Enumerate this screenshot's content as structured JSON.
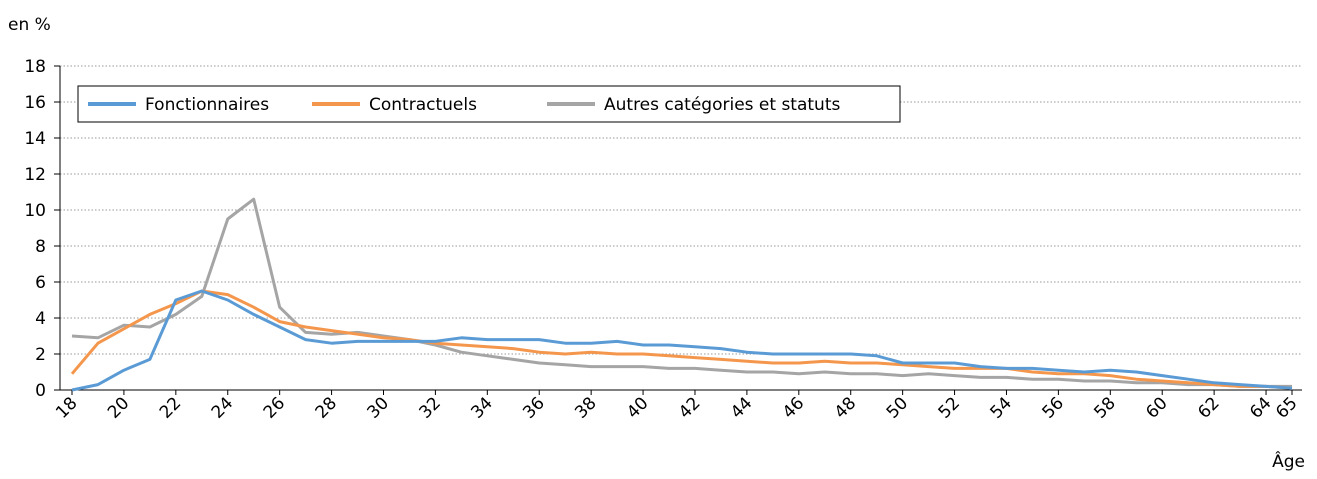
{
  "chart_data": {
    "type": "line",
    "ylabel": "en %",
    "xlabel": "Âge",
    "x": [
      18,
      19,
      20,
      21,
      22,
      23,
      24,
      25,
      26,
      27,
      28,
      29,
      30,
      31,
      32,
      33,
      34,
      35,
      36,
      37,
      38,
      39,
      40,
      41,
      42,
      43,
      44,
      45,
      46,
      47,
      48,
      49,
      50,
      51,
      52,
      53,
      54,
      55,
      56,
      57,
      58,
      59,
      60,
      61,
      62,
      63,
      64,
      65
    ],
    "xlim": [
      18,
      65
    ],
    "xticks": [
      18,
      20,
      22,
      24,
      26,
      28,
      30,
      32,
      34,
      36,
      38,
      40,
      42,
      44,
      46,
      48,
      50,
      52,
      54,
      56,
      58,
      60,
      62,
      64,
      65
    ],
    "ylim": [
      0,
      18
    ],
    "yticks": [
      0,
      2,
      4,
      6,
      8,
      10,
      12,
      14,
      16,
      18
    ],
    "grid": true,
    "legend": "top-left",
    "series": [
      {
        "name": "Fonctionnaires",
        "color": "#5b9bd5",
        "values": [
          0.0,
          0.3,
          1.1,
          1.7,
          5.0,
          5.5,
          5.0,
          4.2,
          3.5,
          2.8,
          2.6,
          2.7,
          2.7,
          2.7,
          2.7,
          2.9,
          2.8,
          2.8,
          2.8,
          2.6,
          2.6,
          2.7,
          2.5,
          2.5,
          2.4,
          2.3,
          2.1,
          2.0,
          2.0,
          2.0,
          2.0,
          1.9,
          1.5,
          1.5,
          1.5,
          1.3,
          1.2,
          1.2,
          1.1,
          1.0,
          1.1,
          1.0,
          0.8,
          0.6,
          0.4,
          0.3,
          0.2,
          0.1
        ]
      },
      {
        "name": "Contractuels",
        "color": "#f4974d",
        "values": [
          0.9,
          2.6,
          3.4,
          4.2,
          4.8,
          5.5,
          5.3,
          4.6,
          3.8,
          3.5,
          3.3,
          3.1,
          2.9,
          2.8,
          2.6,
          2.5,
          2.4,
          2.3,
          2.1,
          2.0,
          2.1,
          2.0,
          2.0,
          1.9,
          1.8,
          1.7,
          1.6,
          1.5,
          1.5,
          1.6,
          1.5,
          1.5,
          1.4,
          1.3,
          1.2,
          1.2,
          1.2,
          1.0,
          0.9,
          0.9,
          0.8,
          0.6,
          0.5,
          0.4,
          0.3,
          0.2,
          0.2,
          0.1
        ]
      },
      {
        "name": "Autres catégories et statuts",
        "color": "#a5a5a5",
        "values": [
          3.0,
          2.9,
          3.6,
          3.5,
          4.2,
          5.2,
          9.5,
          10.6,
          4.6,
          3.2,
          3.1,
          3.2,
          3.0,
          2.8,
          2.5,
          2.1,
          1.9,
          1.7,
          1.5,
          1.4,
          1.3,
          1.3,
          1.3,
          1.2,
          1.2,
          1.1,
          1.0,
          1.0,
          0.9,
          1.0,
          0.9,
          0.9,
          0.8,
          0.9,
          0.8,
          0.7,
          0.7,
          0.6,
          0.6,
          0.5,
          0.5,
          0.4,
          0.4,
          0.3,
          0.3,
          0.2,
          0.2,
          0.2
        ]
      }
    ]
  }
}
